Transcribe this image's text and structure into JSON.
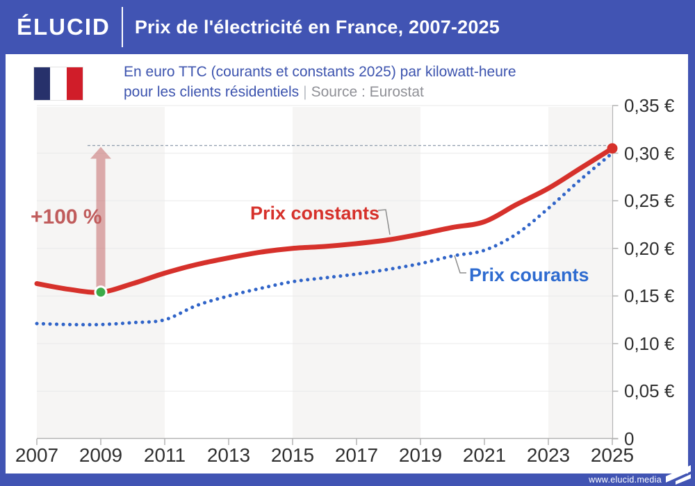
{
  "header": {
    "logo": "ÉLUCID",
    "title": "Prix de l'électricité en France, 2007-2025"
  },
  "subtitle": {
    "flag_icon": "france-flag",
    "line1": "En euro TTC (courants et constants 2025) par kilowatt-heure",
    "line2_main": "pour les clients résidentiels",
    "separator": "|",
    "source": "Source : Eurostat"
  },
  "footer": {
    "url": "www.elucid.media",
    "logo_icon": "elucid-flag-icon"
  },
  "colors": {
    "header_blue": "#4154b3",
    "constants_red": "#d6312b",
    "courants_blue": "#3064c8",
    "courants_label_blue": "#2e6bd0",
    "annotation_red": "#c05c5c",
    "arrow_fill": "rgba(186,78,78,0.45)",
    "green_marker": "#3cab49",
    "band_gray": "#f6f5f4",
    "gridline": "#e9e9e9",
    "axis_gray": "#b3b3b3",
    "dashed_line": "#93a0b0",
    "subtitle_indigo": "#3c53ae",
    "source_gray": "#8f9096",
    "flag_navy": "#27316b",
    "flag_red": "#d01d29"
  },
  "chart_data": {
    "type": "line",
    "title": "Prix de l'électricité en France, 2007-2025",
    "subtitle": "En euro TTC (courants et constants 2025) par kilowatt-heure pour les clients résidentiels",
    "source": "Source : Eurostat",
    "x": [
      2007,
      2008,
      2009,
      2010,
      2011,
      2012,
      2013,
      2014,
      2015,
      2016,
      2017,
      2018,
      2019,
      2020,
      2021,
      2022,
      2023,
      2024,
      2025
    ],
    "series": [
      {
        "name": "Prix constants",
        "style": "solid",
        "color": "#d6312b",
        "values": [
          0.163,
          0.157,
          0.154,
          0.163,
          0.174,
          0.183,
          0.19,
          0.196,
          0.2,
          0.202,
          0.205,
          0.209,
          0.215,
          0.222,
          0.228,
          0.246,
          0.263,
          0.284,
          0.305
        ]
      },
      {
        "name": "Prix courants",
        "style": "dotted",
        "color": "#3064c8",
        "values": [
          0.121,
          0.12,
          0.12,
          0.122,
          0.125,
          0.14,
          0.15,
          0.158,
          0.165,
          0.169,
          0.173,
          0.178,
          0.184,
          0.192,
          0.198,
          0.215,
          0.242,
          0.272,
          0.3
        ]
      }
    ],
    "series_labels": {
      "constants": "Prix constants",
      "courants": "Prix courants"
    },
    "ylim": [
      0,
      0.35
    ],
    "yticks": [
      {
        "value": 0.35,
        "label": "0,35 €"
      },
      {
        "value": 0.3,
        "label": "0,30 €"
      },
      {
        "value": 0.25,
        "label": "0,25 €"
      },
      {
        "value": 0.2,
        "label": "0,20 €"
      },
      {
        "value": 0.15,
        "label": "0,15 €"
      },
      {
        "value": 0.1,
        "label": "0,10 €"
      },
      {
        "value": 0.05,
        "label": "0,05 €"
      },
      {
        "value": 0,
        "label": "0"
      }
    ],
    "xticks": [
      {
        "value": 2007,
        "label": "2007"
      },
      {
        "value": 2009,
        "label": "2009"
      },
      {
        "value": 2011,
        "label": "2011"
      },
      {
        "value": 2013,
        "label": "2013"
      },
      {
        "value": 2015,
        "label": "2015"
      },
      {
        "value": 2017,
        "label": "2017"
      },
      {
        "value": 2019,
        "label": "2019"
      },
      {
        "value": 2021,
        "label": "2021"
      },
      {
        "value": 2023,
        "label": "2023"
      },
      {
        "value": 2025,
        "label": "2025"
      }
    ],
    "grid": "horizontal",
    "legend_position": "inline-labels",
    "bands": [
      [
        2007,
        2011
      ],
      [
        2015,
        2019
      ],
      [
        2023,
        2025
      ]
    ],
    "annotation": {
      "label": "+100 %",
      "arrow_year": 2009,
      "arrow_top_value": 0.308,
      "dashed_line_value": 0.308,
      "start_marker": {
        "year": 2009,
        "value": 0.154,
        "color": "#3cab49"
      },
      "end_marker": {
        "year": 2025,
        "value": 0.305,
        "color": "#d6312b"
      }
    }
  }
}
